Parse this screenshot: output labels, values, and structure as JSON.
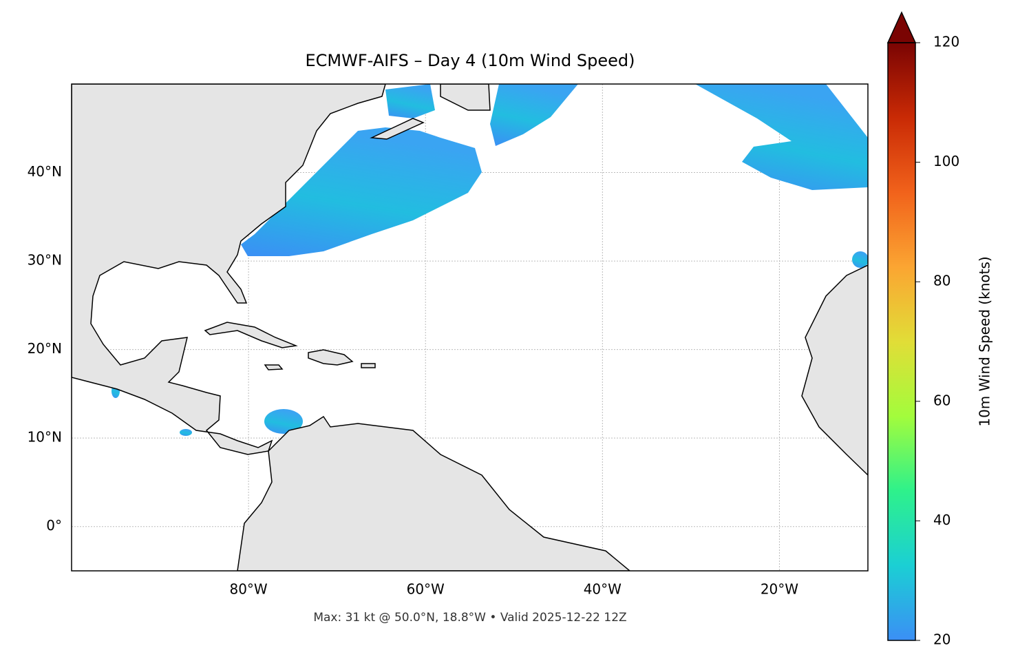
{
  "chart_data": {
    "type": "map",
    "title": "ECMWF-AIFS – Day 4 (10m Wind Speed)",
    "footnote": "Max: 31 kt @ 50.0°N, 18.8°W • Valid 2025-12-22 12Z",
    "xlim": [
      -100,
      -10
    ],
    "ylim": [
      -5,
      50
    ],
    "xticks": [
      {
        "value": -80,
        "label": "80°W"
      },
      {
        "value": -60,
        "label": "60°W"
      },
      {
        "value": -40,
        "label": "40°W"
      },
      {
        "value": -20,
        "label": "20°W"
      }
    ],
    "yticks": [
      {
        "value": 0,
        "label": "0°"
      },
      {
        "value": 10,
        "label": "10°N"
      },
      {
        "value": 20,
        "label": "20°N"
      },
      {
        "value": 30,
        "label": "30°N"
      },
      {
        "value": 40,
        "label": "40°N"
      }
    ],
    "grid": true,
    "colorbar": {
      "label": "10m Wind Speed (knots)",
      "lim": [
        20,
        120
      ],
      "ticks": [
        20,
        40,
        60,
        80,
        100,
        120
      ],
      "extend": "max",
      "colors": [
        "#3b8ff5",
        "#1bcfd4",
        "#2ef18b",
        "#a3fc3c",
        "#e1dd37",
        "#fba532",
        "#f1621b",
        "#c92a05",
        "#7a0403"
      ]
    }
  }
}
